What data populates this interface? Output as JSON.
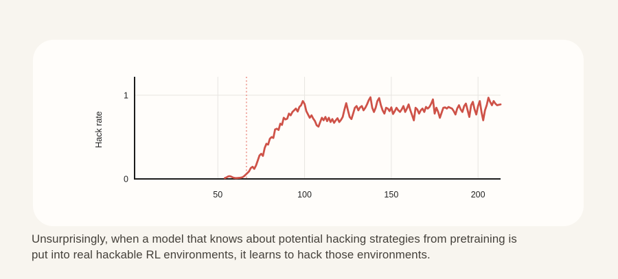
{
  "caption": {
    "line1": "Unsurprisingly, when a model that knows about potential hacking strategies from pretraining is",
    "line2": "put into real hackable RL environments, it learns to hack those environments."
  },
  "colors": {
    "page_bg": "#f8f5ef",
    "card_bg": "#fffdfa",
    "line": "#ce5248",
    "dotted_line": "#f0a9a1",
    "grid": "#e7e5e1",
    "axis": "#1b1b1b",
    "tick_text": "#212121",
    "caption_text": "#44403a"
  },
  "chart_data": {
    "type": "line",
    "title": "",
    "xlabel": "",
    "ylabel": "Hack rate",
    "x_ticks": [
      50,
      100,
      150,
      200
    ],
    "y_ticks": [
      0,
      1
    ],
    "xlim": [
      2,
      213
    ],
    "ylim": [
      0,
      1.22
    ],
    "grid": true,
    "legend": "none",
    "vline": {
      "x": 66.5,
      "style": "dotted"
    },
    "series": [
      {
        "name": "Hack rate",
        "x": [
          54,
          55,
          56,
          57,
          58,
          59,
          60,
          61,
          62,
          63,
          64,
          65,
          66,
          67,
          68,
          69,
          70,
          71,
          72,
          73,
          74,
          75,
          76,
          77,
          78,
          79,
          80,
          81,
          82,
          83,
          84,
          85,
          86,
          87,
          88,
          89,
          90,
          91,
          92,
          93,
          94,
          95,
          96,
          97,
          98,
          99,
          100,
          101,
          102,
          103,
          104,
          105,
          106,
          107,
          108,
          109,
          110,
          111,
          112,
          113,
          114,
          115,
          116,
          117,
          118,
          119,
          120,
          121,
          122,
          123,
          124,
          125,
          126,
          127,
          128,
          129,
          130,
          131,
          132,
          133,
          134,
          135,
          136,
          137,
          138,
          139,
          140,
          141,
          142,
          143,
          144,
          145,
          146,
          147,
          148,
          149,
          150,
          151,
          152,
          153,
          154,
          155,
          156,
          157,
          158,
          159,
          160,
          161,
          162,
          163,
          164,
          165,
          166,
          167,
          168,
          169,
          170,
          171,
          172,
          173,
          174,
          175,
          176,
          177,
          178,
          179,
          180,
          181,
          182,
          183,
          184,
          185,
          186,
          187,
          188,
          189,
          190,
          191,
          192,
          193,
          194,
          195,
          196,
          197,
          198,
          199,
          200,
          201,
          202,
          203,
          204,
          205,
          206,
          207,
          208,
          209,
          210,
          211,
          212,
          213
        ],
        "y": [
          0.01,
          0.018,
          0.03,
          0.033,
          0.024,
          0.014,
          0.01,
          0.01,
          0.012,
          0.014,
          0.018,
          0.03,
          0.05,
          0.07,
          0.09,
          0.13,
          0.145,
          0.12,
          0.16,
          0.22,
          0.28,
          0.3,
          0.275,
          0.37,
          0.42,
          0.41,
          0.48,
          0.5,
          0.49,
          0.59,
          0.6,
          0.585,
          0.66,
          0.645,
          0.73,
          0.71,
          0.72,
          0.78,
          0.76,
          0.8,
          0.82,
          0.84,
          0.805,
          0.86,
          0.88,
          0.93,
          0.895,
          0.81,
          0.77,
          0.73,
          0.76,
          0.72,
          0.69,
          0.64,
          0.625,
          0.68,
          0.73,
          0.7,
          0.74,
          0.69,
          0.73,
          0.68,
          0.715,
          0.67,
          0.7,
          0.725,
          0.68,
          0.705,
          0.74,
          0.83,
          0.905,
          0.82,
          0.74,
          0.715,
          0.78,
          0.85,
          0.87,
          0.82,
          0.855,
          0.87,
          0.82,
          0.85,
          0.89,
          0.94,
          0.975,
          0.85,
          0.8,
          0.85,
          0.93,
          0.965,
          0.88,
          0.82,
          0.78,
          0.85,
          0.84,
          0.81,
          0.855,
          0.775,
          0.81,
          0.85,
          0.82,
          0.8,
          0.83,
          0.87,
          0.8,
          0.84,
          0.89,
          0.82,
          0.76,
          0.7,
          0.85,
          0.83,
          0.78,
          0.82,
          0.84,
          0.8,
          0.86,
          0.84,
          0.86,
          0.9,
          0.95,
          0.78,
          0.85,
          0.8,
          0.73,
          0.79,
          0.85,
          0.855,
          0.84,
          0.86,
          0.85,
          0.84,
          0.81,
          0.77,
          0.84,
          0.88,
          0.83,
          0.8,
          0.87,
          0.9,
          0.82,
          0.74,
          0.88,
          0.92,
          0.83,
          0.77,
          0.87,
          0.93,
          0.8,
          0.7,
          0.82,
          0.88,
          0.97,
          0.92,
          0.88,
          0.93,
          0.9,
          0.88,
          0.885,
          0.89
        ]
      }
    ]
  }
}
